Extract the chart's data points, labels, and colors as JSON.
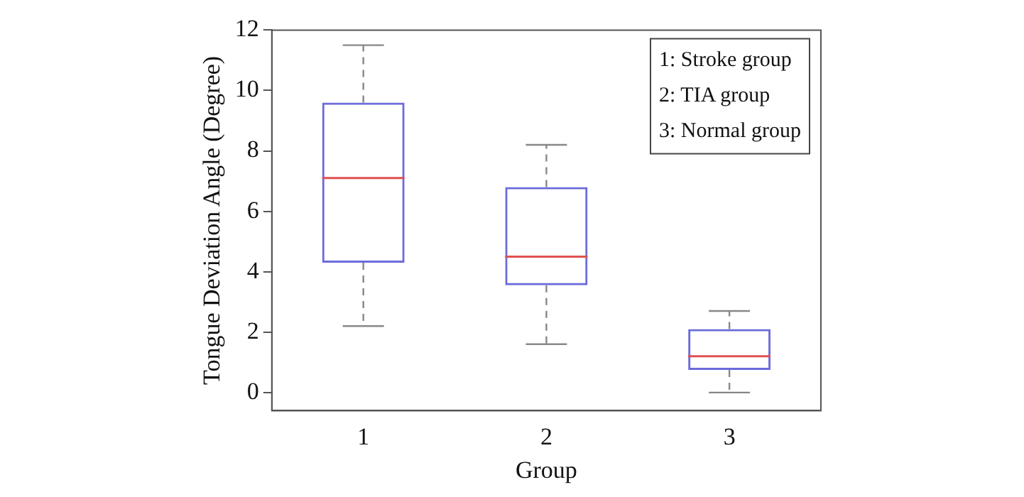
{
  "chart_data": {
    "type": "box",
    "xlabel": "Group",
    "ylabel": "Tongue Deviation Angle (Degree)",
    "categories": [
      "1",
      "2",
      "3"
    ],
    "series": [
      {
        "color": "#6b6bdb",
        "boxes": [
          {
            "low": 2.2,
            "q1": 4.3,
            "median": 7.1,
            "q3": 9.6,
            "high": 11.5
          },
          {
            "low": 1.6,
            "q1": 3.55,
            "median": 4.5,
            "q3": 6.8,
            "high": 8.2
          },
          {
            "low": 0,
            "q1": 0.75,
            "median": 1.2,
            "q3": 2.1,
            "high": 2.7
          }
        ]
      }
    ],
    "ylim": [
      -0.6,
      12
    ],
    "yticks": [
      0,
      2,
      4,
      6,
      8,
      10,
      12
    ],
    "annotations": [
      "1: Stroke group",
      "2: TIA group",
      "3: Normal group"
    ]
  }
}
